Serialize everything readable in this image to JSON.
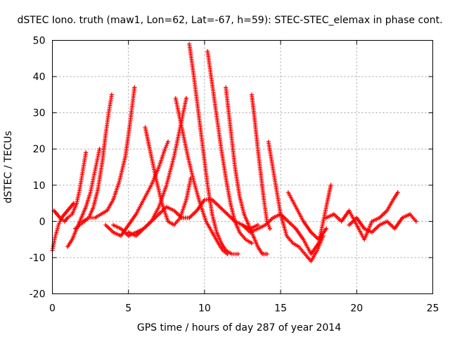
{
  "chart_data": {
    "type": "scatter",
    "title": "dSTEC Iono. truth (maw1, Lon=62, Lat=-67, h=59): STEC-STEC_elemax in phase cont.",
    "xlabel": "GPS time / hours of day 287 of year 2014",
    "ylabel": "dSTEC  / TECUs",
    "xlim": [
      0,
      25
    ],
    "ylim": [
      -20,
      50
    ],
    "x_ticks": [
      0,
      5,
      10,
      15,
      20,
      25
    ],
    "y_ticks": [
      -20,
      -10,
      0,
      10,
      20,
      30,
      40,
      50
    ],
    "grid": true,
    "legend": "none",
    "marker": "plus",
    "color": "#ff0000",
    "series": [
      {
        "x": [
          0.0,
          0.2,
          0.4,
          0.6,
          0.8,
          1.0,
          1.2,
          1.4
        ],
        "y": [
          -8,
          -4,
          -1,
          1,
          2,
          3,
          4,
          5
        ]
      },
      {
        "x": [
          0.1,
          0.3,
          0.5,
          0.8,
          1.0,
          1.3,
          1.6,
          1.8,
          2.0,
          2.2
        ],
        "y": [
          3,
          2,
          1,
          0,
          1,
          2,
          5,
          9,
          14,
          19
        ]
      },
      {
        "x": [
          1.0,
          1.3,
          1.6,
          1.9,
          2.2,
          2.5,
          2.7,
          2.9,
          3.1
        ],
        "y": [
          -7,
          -5,
          -2,
          1,
          4,
          8,
          12,
          16,
          20
        ]
      },
      {
        "x": [
          1.5,
          1.8,
          2.1,
          2.4,
          2.7,
          3.0,
          3.3,
          3.5,
          3.7,
          3.9
        ],
        "y": [
          -2,
          -1,
          0,
          1,
          4,
          9,
          17,
          24,
          30,
          35
        ]
      },
      {
        "x": [
          2.0,
          2.4,
          2.8,
          3.2,
          3.6,
          4.0,
          4.4,
          4.8,
          5.1,
          5.4
        ],
        "y": [
          0,
          1,
          1,
          2,
          3,
          6,
          11,
          18,
          27,
          37
        ]
      },
      {
        "x": [
          3.5,
          4.0,
          4.5,
          5.0,
          5.5,
          6.0,
          6.5,
          7.0,
          7.4,
          7.6
        ],
        "y": [
          -1,
          -3,
          -4,
          -1,
          2,
          6,
          10,
          15,
          20,
          22
        ]
      },
      {
        "x": [
          4.0,
          4.5,
          5.0,
          5.5,
          6.0,
          6.5,
          7.0,
          7.5,
          8.0,
          8.5,
          9.0
        ],
        "y": [
          -1,
          -2,
          -4,
          -3,
          -2,
          0,
          2,
          4,
          3,
          1,
          1
        ]
      },
      {
        "x": [
          6.1,
          6.4,
          6.8,
          7.2,
          7.6,
          8.0,
          8.4,
          8.8,
          9.1
        ],
        "y": [
          26,
          20,
          12,
          5,
          0,
          -1,
          1,
          6,
          12
        ]
      },
      {
        "x": [
          5.0,
          5.5,
          6.0,
          6.5,
          7.0,
          7.5,
          8.0,
          8.4,
          8.8
        ],
        "y": [
          -3,
          -4,
          -2,
          0,
          4,
          10,
          18,
          26,
          34
        ]
      },
      {
        "x": [
          8.1,
          8.5,
          8.9,
          9.3,
          9.7,
          10.1,
          10.5,
          10.9,
          11.2,
          11.5
        ],
        "y": [
          34,
          26,
          18,
          11,
          5,
          0,
          -3,
          -6,
          -8,
          -9
        ]
      },
      {
        "x": [
          9.0,
          9.3,
          9.6,
          9.9,
          10.2,
          10.5,
          10.8,
          11.1,
          11.4,
          11.8,
          12.2
        ],
        "y": [
          49,
          40,
          30,
          20,
          10,
          2,
          -3,
          -6,
          -8,
          -9,
          -9
        ]
      },
      {
        "x": [
          10.2,
          10.5,
          10.8,
          11.1,
          11.4,
          11.7,
          12.0,
          12.3,
          12.7,
          13.1
        ],
        "y": [
          47,
          38,
          29,
          20,
          12,
          5,
          0,
          -3,
          -5,
          -6
        ]
      },
      {
        "x": [
          11.4,
          11.7,
          12.0,
          12.3,
          12.6,
          12.9,
          13.2,
          13.5,
          13.8,
          14.1
        ],
        "y": [
          37,
          26,
          15,
          7,
          2,
          -1,
          -4,
          -7,
          -9,
          -9
        ]
      },
      {
        "x": [
          13.1,
          13.3,
          13.5,
          13.7,
          13.9,
          14.1,
          14.3
        ],
        "y": [
          35,
          28,
          20,
          13,
          6,
          0,
          -2
        ]
      },
      {
        "x": [
          8.5,
          9.0,
          9.5,
          10.0,
          10.5,
          11.0,
          11.5,
          12.0,
          12.5,
          13.0,
          13.5
        ],
        "y": [
          1,
          1,
          3,
          6,
          6,
          4,
          2,
          0,
          -1,
          -2,
          -1
        ]
      },
      {
        "x": [
          12.5,
          13.0,
          13.5,
          14.0,
          14.5,
          15.0,
          15.5,
          16.0,
          16.5,
          17.0,
          17.5,
          18.0,
          18.3
        ],
        "y": [
          -1,
          -3,
          -2,
          -1,
          1,
          2,
          0,
          -2,
          -5,
          -9,
          -6,
          4,
          10
        ]
      },
      {
        "x": [
          14.2,
          14.6,
          15.0,
          15.4,
          15.8,
          16.2,
          16.6,
          17.0,
          17.4,
          17.8
        ],
        "y": [
          22,
          12,
          2,
          -4,
          -6,
          -7,
          -9,
          -11,
          -8,
          -4
        ]
      },
      {
        "x": [
          15.5,
          16.0,
          16.5,
          17.0,
          17.5,
          18.0
        ],
        "y": [
          8,
          4,
          0,
          -3,
          -5,
          -2
        ]
      },
      {
        "x": [
          18.0,
          18.5,
          19.0,
          19.5,
          20.0,
          20.5,
          21.0,
          21.5,
          22.0,
          22.4,
          22.7
        ],
        "y": [
          1,
          2,
          0,
          3,
          -1,
          -5,
          0,
          1,
          3,
          6,
          8
        ]
      },
      {
        "x": [
          19.5,
          20.0,
          20.5,
          21.0,
          21.5,
          22.0,
          22.5,
          23.0,
          23.5,
          23.9
        ],
        "y": [
          -1,
          1,
          -2,
          -3,
          -1,
          0,
          -2,
          1,
          2,
          0
        ]
      }
    ]
  }
}
